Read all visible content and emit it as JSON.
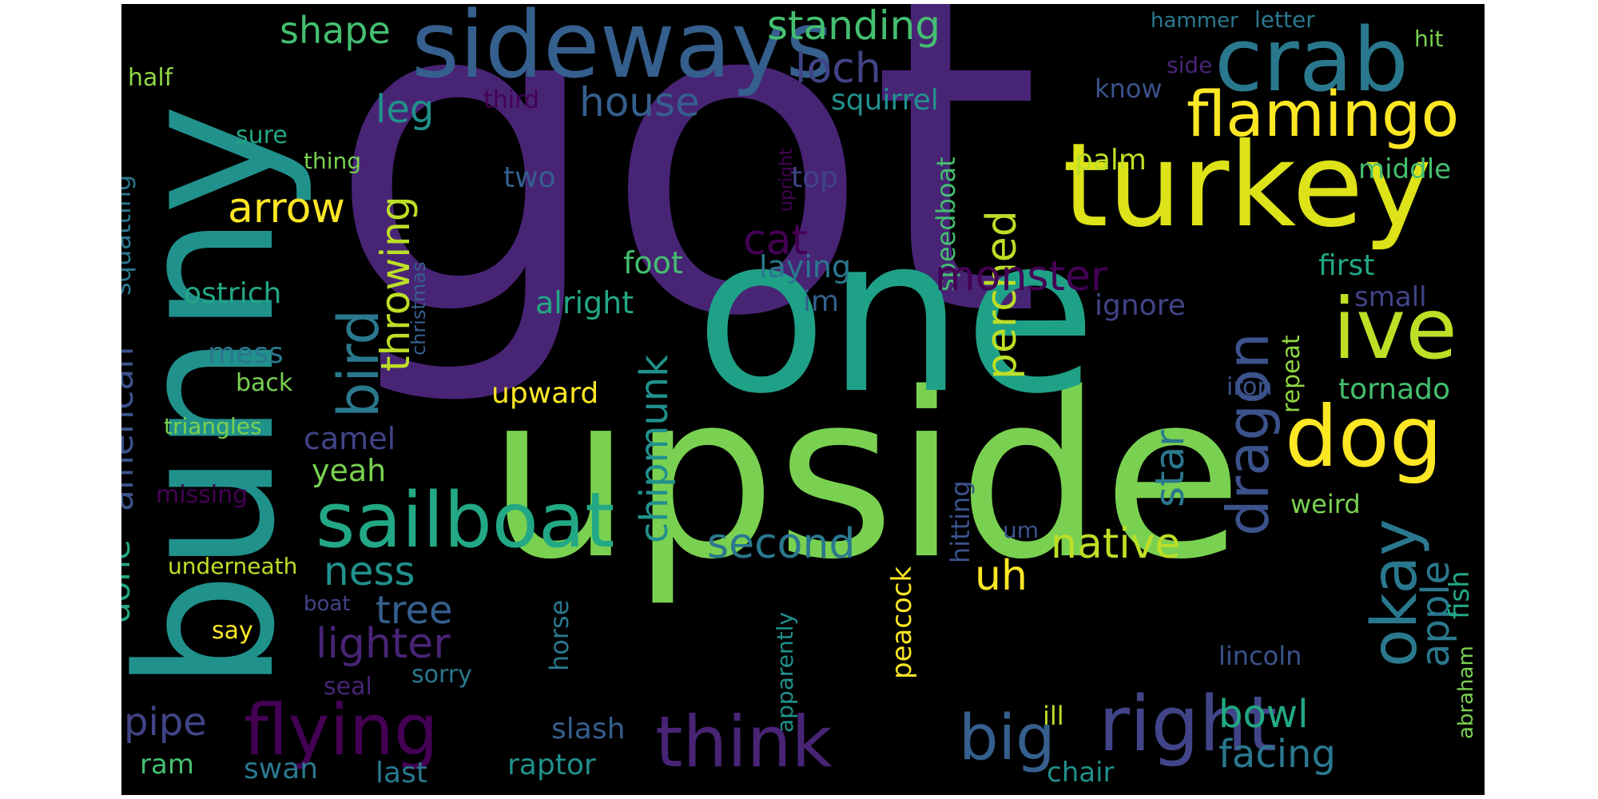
{
  "words": {
    "got": "got",
    "upside": "upside",
    "one": "one",
    "bunny": "bunny",
    "sideways": "sideways",
    "turkey": "turkey",
    "crab": "crab",
    "flamingo": "flamingo",
    "ive": "ive",
    "dog": "dog",
    "sailboat": "sailboat",
    "flying": "flying",
    "think": "think",
    "right": "right",
    "big": "big",
    "bird": "bird",
    "dragon": "dragon",
    "okay": "okay",
    "arrow": "arrow",
    "house": "house",
    "standing": "standing",
    "shape": "shape",
    "loch": "loch",
    "leg": "leg",
    "cat": "cat",
    "monster": "monster",
    "perched": "perched",
    "throwing": "throwing",
    "chipmunk": "chipmunk",
    "native": "native",
    "second": "second",
    "lighter": "lighter",
    "tree": "tree",
    "ness": "ness",
    "uh": "uh",
    "star": "star",
    "apple": "apple",
    "bowl": "bowl",
    "facing": "facing",
    "pipe": "pipe",
    "american": "american",
    "done": "done",
    "squatting": "squatting",
    "upward": "upward",
    "ostrich": "ostrich",
    "squirrel": "squirrel",
    "palm": "palm",
    "middle": "middle",
    "top": "top",
    "two": "two",
    "foot": "foot",
    "laying": "laying",
    "alright": "alright",
    "im": "im",
    "first": "first",
    "ignore": "ignore",
    "small": "small",
    "tornado": "tornado",
    "repeat": "repeat",
    "weird": "weird",
    "fish": "fish",
    "abraham": "abraham",
    "lincoln": "lincoln",
    "camel": "camel",
    "yeah": "yeah",
    "mess": "mess",
    "back": "back",
    "triangles": "triangles",
    "missing": "missing",
    "underneath": "underneath",
    "say": "say",
    "boat": "boat",
    "seal": "seal",
    "sorry": "sorry",
    "ram": "ram",
    "swan": "swan",
    "last": "last",
    "raptor": "raptor",
    "slash": "slash",
    "horse": "horse",
    "peacock": "peacock",
    "hitting": "hitting",
    "speedboat": "speedboat",
    "apparently": "apparently",
    "ill": "ill",
    "chair": "chair",
    "um": "um",
    "iron": "iron",
    "sure": "sure",
    "thing": "thing",
    "half": "half",
    "third": "third",
    "know": "know",
    "side": "side",
    "hit": "hit",
    "hammer": "hammer",
    "letter": "letter",
    "upright": "upright",
    "christmas": "christmas"
  },
  "colors": {
    "background": "#000000",
    "palette": [
      "#482475",
      "#440154",
      "#414487",
      "#355f8d",
      "#2a788e",
      "#21918c",
      "#22a884",
      "#44bf70",
      "#7ad151",
      "#bddf26",
      "#fde725"
    ]
  }
}
